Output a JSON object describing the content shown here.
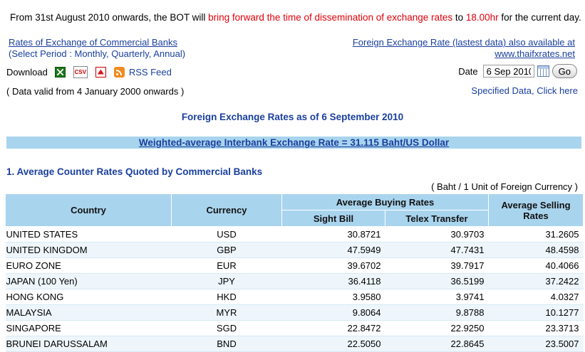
{
  "notice": {
    "part1": "From 31st August 2010 onwards, the BOT will ",
    "part2": "bring forward the time of dissemination of exchange rates",
    "part3": " to ",
    "part4": "18.00hr",
    "part5": " for the current day."
  },
  "links": {
    "rates_title": "Rates of Exchange of Commercial Banks",
    "rates_period": "(Select Period : Monthly, Quarterly, Annual)",
    "fx_line1": "Foreign Exchange Rate (lastest data) also available at",
    "fx_line2": "www.thaifxrates.net",
    "specified": "Specified Data, Click here"
  },
  "download": {
    "label": "Download",
    "csv_text": "CSV",
    "rss_label": "RSS Feed",
    "icons": [
      "excel-icon",
      "csv-icon",
      "pdf-icon",
      "rss-icon"
    ]
  },
  "date": {
    "label": "Date",
    "value": "6 Sep 2010",
    "go_label": "Go"
  },
  "valid_note": "( Data valid from 4 January 2000 onwards )",
  "heading": "Foreign Exchange Rates as of 6 September 2010",
  "banner": "Weighted-average Interbank Exchange Rate = 31.115 Baht/US Dollar",
  "section_title": "1. Average Counter Rates Quoted by Commercial Banks",
  "unit_note": "( Baht / 1 Unit of Foreign Currency )",
  "table": {
    "headers": {
      "country": "Country",
      "currency": "Currency",
      "avg_buying": "Average Buying Rates",
      "sight_bill": "Sight Bill",
      "telex": "Telex Transfer",
      "avg_selling": "Average Selling Rates"
    },
    "rows": [
      {
        "country": "UNITED STATES",
        "currency": "USD",
        "sight": "30.8721",
        "telex": "30.9703",
        "selling": "31.2605"
      },
      {
        "country": "UNITED KINGDOM",
        "currency": "GBP",
        "sight": "47.5949",
        "telex": "47.7431",
        "selling": "48.4598"
      },
      {
        "country": "EURO ZONE",
        "currency": "EUR",
        "sight": "39.6702",
        "telex": "39.7917",
        "selling": "40.4066"
      },
      {
        "country": "JAPAN (100 Yen)",
        "currency": "JPY",
        "sight": "36.4118",
        "telex": "36.5199",
        "selling": "37.2422"
      },
      {
        "country": "HONG KONG",
        "currency": "HKD",
        "sight": "3.9580",
        "telex": "3.9741",
        "selling": "4.0327"
      },
      {
        "country": "MALAYSIA",
        "currency": "MYR",
        "sight": "9.8064",
        "telex": "9.8788",
        "selling": "10.1277"
      },
      {
        "country": "SINGAPORE",
        "currency": "SGD",
        "sight": "22.8472",
        "telex": "22.9250",
        "selling": "23.3713"
      },
      {
        "country": "BRUNEI DARUSSALAM",
        "currency": "BND",
        "sight": "22.5050",
        "telex": "22.8645",
        "selling": "23.5007"
      }
    ]
  },
  "colors": {
    "link": "#1a3f9e",
    "notice_red": "#e0000a",
    "header_bg": "#a9d4ee",
    "row_alt": "#eef6fc"
  }
}
